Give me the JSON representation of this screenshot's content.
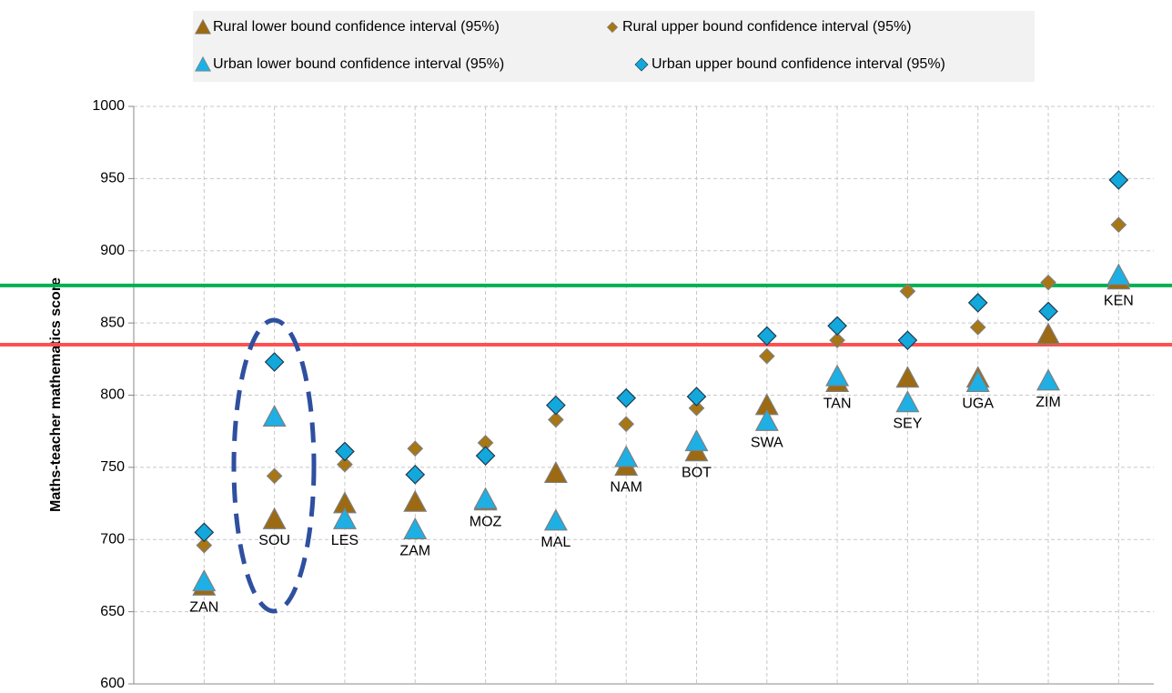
{
  "chart_data": {
    "type": "scatter",
    "y_label": "Maths-teacher mathematics score",
    "x": [
      1,
      2,
      3,
      4,
      5,
      6,
      7,
      8,
      9,
      10,
      11,
      12,
      13,
      14
    ],
    "point_labels": [
      "ZAN",
      "SOU",
      "LES",
      "ZAM",
      "MOZ",
      "MAL",
      "NAM",
      "BOT",
      "SWA",
      "TAN",
      "SEY",
      "UGA",
      "ZIM",
      "KEN"
    ],
    "xlim": [
      0,
      14.5
    ],
    "ylim": [
      600,
      1000
    ],
    "yticks": [
      600,
      650,
      700,
      750,
      800,
      850,
      900,
      950,
      1000
    ],
    "grid": true,
    "legend": "top",
    "series": [
      {
        "name": "Rural lower bound confidence interval (95%)",
        "color": "#9c6a12",
        "marker": "triangle",
        "values": [
          668,
          714,
          725,
          726,
          727,
          746,
          751,
          761,
          793,
          809,
          812,
          812,
          842,
          880
        ]
      },
      {
        "name": "Rural upper bound confidence interval (95%)",
        "color": "#a87612",
        "marker": "diamond-small",
        "values": [
          696,
          744,
          752,
          763,
          767,
          783,
          780,
          791,
          827,
          838,
          872,
          847,
          878,
          918
        ]
      },
      {
        "name": "Urban lower bound confidence interval (95%)",
        "color": "#1eb0e4",
        "marker": "triangle",
        "values": [
          671,
          785,
          714,
          707,
          728,
          713,
          757,
          768,
          782,
          813,
          795,
          809,
          810,
          883
        ]
      },
      {
        "name": "Urban upper bound confidence interval (95%)",
        "color": "#12a8dc",
        "marker": "diamond",
        "values": [
          705,
          823,
          761,
          745,
          758,
          793,
          798,
          799,
          841,
          848,
          838,
          864,
          858,
          949
        ]
      }
    ],
    "hlines": [
      {
        "value": 876,
        "color": "#00b050"
      },
      {
        "value": 835,
        "color": "#ff5050"
      }
    ]
  }
}
